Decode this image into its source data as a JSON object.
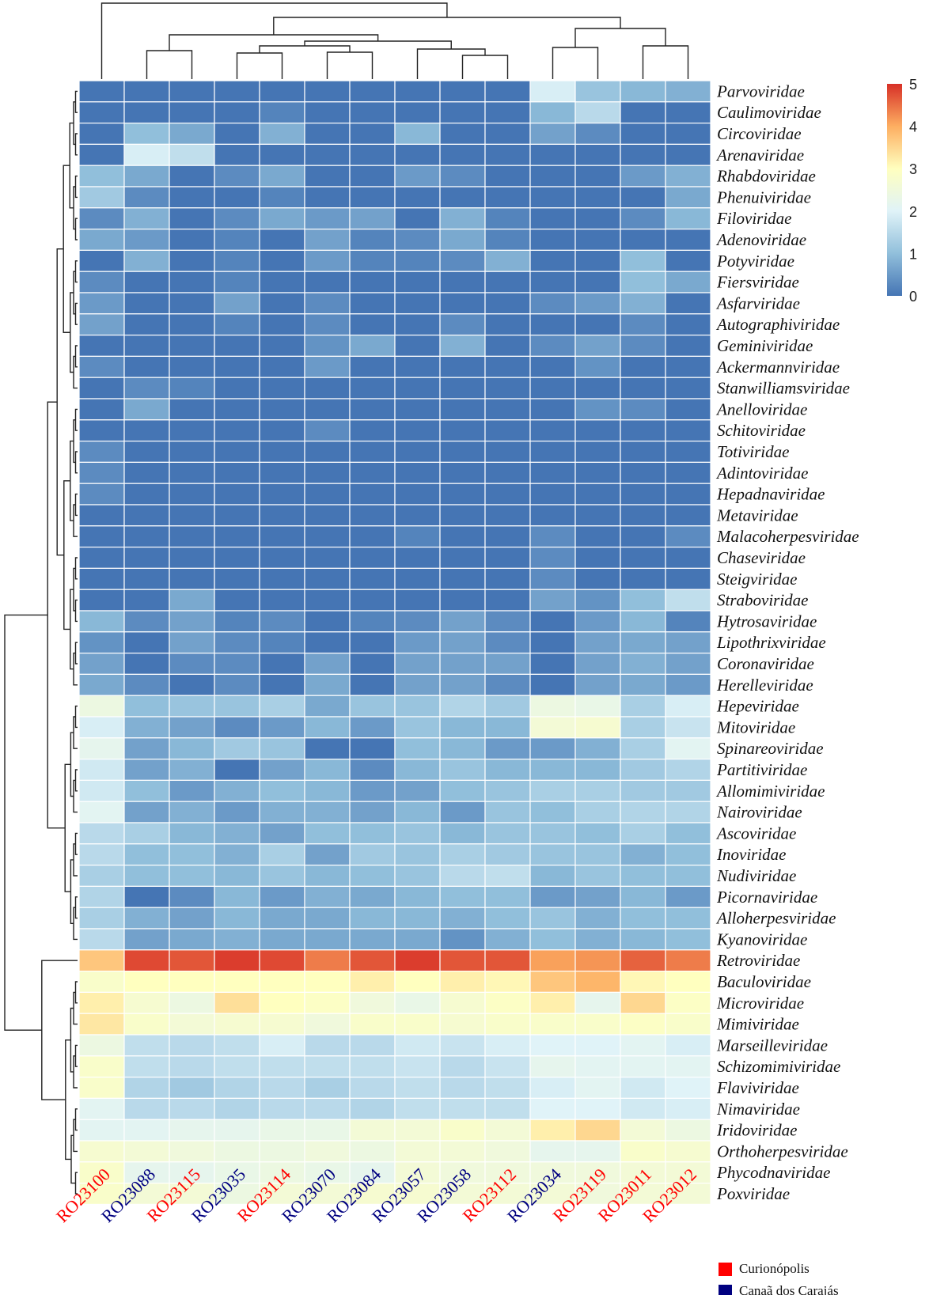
{
  "chart_data": {
    "type": "heatmap",
    "title": "",
    "xlabel": "",
    "ylabel": "",
    "color_scale": {
      "min": 0,
      "max": 5,
      "ticks": [
        "0",
        "1",
        "2",
        "3",
        "4",
        "5"
      ],
      "colors": [
        "#4575b4",
        "#91bfdb",
        "#e0f3f8",
        "#ffffbf",
        "#fdae61",
        "#d73027"
      ]
    },
    "columns": [
      {
        "label": "RO23100",
        "group": "Curionópolis"
      },
      {
        "label": "RO23088",
        "group": "Canaã dos Carajás"
      },
      {
        "label": "RO23115",
        "group": "Curionópolis"
      },
      {
        "label": "RO23035",
        "group": "Canaã dos Carajás"
      },
      {
        "label": "RO23114",
        "group": "Curionópolis"
      },
      {
        "label": "RO23070",
        "group": "Canaã dos Carajás"
      },
      {
        "label": "RO23084",
        "group": "Canaã dos Carajás"
      },
      {
        "label": "RO23057",
        "group": "Canaã dos Carajás"
      },
      {
        "label": "RO23058",
        "group": "Canaã dos Carajás"
      },
      {
        "label": "RO23112",
        "group": "Curionópolis"
      },
      {
        "label": "RO23034",
        "group": "Canaã dos Carajás"
      },
      {
        "label": "RO23119",
        "group": "Curionópolis"
      },
      {
        "label": "RO23011",
        "group": "Curionópolis"
      },
      {
        "label": "RO23012",
        "group": "Curionópolis"
      }
    ],
    "rows": [
      "Parvoviridae",
      "Caulimoviridae",
      "Circoviridae",
      "Arenaviridae",
      "Rhabdoviridae",
      "Phenuiviridae",
      "Filoviridae",
      "Adenoviridae",
      "Potyviridae",
      "Fiersviridae",
      "Asfarviridae",
      "Autographiviridae",
      "Geminiviridae",
      "Ackermannviridae",
      "Stanwilliamsviridae",
      "Anelloviridae",
      "Schitoviridae",
      "Totiviridae",
      "Adintoviridae",
      "Hepadnaviridae",
      "Metaviridae",
      "Malacoherpesviridae",
      "Chaseviridae",
      "Steigviridae",
      "Straboviridae",
      "Hytrosaviridae",
      "Lipothrixviridae",
      "Coronaviridae",
      "Herelleviridae",
      "Hepeviridae",
      "Mitoviridae",
      "Spinareoviridae",
      "Partitiviridae",
      "Allomimiviridae",
      "Nairoviridae",
      "Ascoviridae",
      "Inoviridae",
      "Nudiviridae",
      "Picornaviridae",
      "Alloherpesviridae",
      "Kyanoviridae",
      "Retroviridae",
      "Baculoviridae",
      "Microviridae",
      "Mimiviridae",
      "Marseilleviridae",
      "Schizomimiviridae",
      "Flaviviridae",
      "Nimaviridae",
      "Iridoviridae",
      "Orthoherpesviridae",
      "Phycodnaviridae",
      "Poxviridae"
    ],
    "values": [
      [
        0.0,
        0.0,
        0.0,
        0.0,
        0.0,
        0.0,
        0.0,
        0.0,
        0.0,
        0.0,
        1.9,
        1.1,
        0.9,
        0.8
      ],
      [
        0.0,
        0.0,
        0.0,
        0.0,
        0.2,
        0.0,
        0.0,
        0.0,
        0.0,
        0.0,
        0.9,
        1.5,
        0.0,
        0.0
      ],
      [
        0.0,
        1.0,
        0.7,
        0.0,
        0.8,
        0.0,
        0.0,
        0.9,
        0.0,
        0.0,
        0.6,
        0.3,
        0.0,
        0.0
      ],
      [
        0.0,
        1.9,
        1.6,
        0.0,
        0.0,
        0.0,
        0.0,
        0.0,
        0.0,
        0.0,
        0.0,
        0.0,
        0.0,
        0.0
      ],
      [
        1.0,
        0.7,
        0.0,
        0.3,
        0.7,
        0.0,
        0.0,
        0.5,
        0.3,
        0.0,
        0.0,
        0.0,
        0.5,
        0.8
      ],
      [
        1.2,
        0.3,
        0.0,
        0.0,
        0.2,
        0.0,
        0.0,
        0.0,
        0.0,
        0.0,
        0.0,
        0.0,
        0.0,
        0.7
      ],
      [
        0.3,
        0.8,
        0.0,
        0.3,
        0.7,
        0.5,
        0.6,
        0.0,
        0.8,
        0.2,
        0.0,
        0.0,
        0.3,
        0.9
      ],
      [
        0.7,
        0.5,
        0.0,
        0.2,
        0.0,
        0.6,
        0.2,
        0.3,
        0.7,
        0.2,
        0.0,
        0.0,
        0.0,
        0.0
      ],
      [
        0.0,
        0.8,
        0.0,
        0.2,
        0.0,
        0.5,
        0.2,
        0.2,
        0.3,
        0.8,
        0.0,
        0.0,
        1.0,
        0.0
      ],
      [
        0.3,
        0.0,
        0.0,
        0.2,
        0.0,
        0.0,
        0.0,
        0.0,
        0.0,
        0.0,
        0.0,
        0.0,
        1.0,
        0.7
      ],
      [
        0.5,
        0.0,
        0.0,
        0.6,
        0.0,
        0.3,
        0.0,
        0.0,
        0.0,
        0.0,
        0.3,
        0.5,
        0.8,
        0.0
      ],
      [
        0.6,
        0.0,
        0.0,
        0.2,
        0.0,
        0.3,
        0.0,
        0.0,
        0.3,
        0.0,
        0.0,
        0.0,
        0.3,
        0.0
      ],
      [
        0.0,
        0.0,
        0.0,
        0.0,
        0.0,
        0.4,
        0.7,
        0.0,
        0.8,
        0.0,
        0.3,
        0.6,
        0.3,
        0.0
      ],
      [
        0.3,
        0.0,
        0.0,
        0.0,
        0.0,
        0.5,
        0.0,
        0.0,
        0.0,
        0.0,
        0.0,
        0.4,
        0.0,
        0.0
      ],
      [
        0.0,
        0.3,
        0.2,
        0.0,
        0.0,
        0.0,
        0.0,
        0.0,
        0.0,
        0.0,
        0.0,
        0.0,
        0.0,
        0.0
      ],
      [
        0.0,
        0.7,
        0.0,
        0.0,
        0.0,
        0.0,
        0.0,
        0.0,
        0.0,
        0.0,
        0.0,
        0.4,
        0.3,
        0.0
      ],
      [
        0.0,
        0.0,
        0.0,
        0.0,
        0.0,
        0.3,
        0.0,
        0.0,
        0.0,
        0.0,
        0.0,
        0.0,
        0.0,
        0.0
      ],
      [
        0.3,
        0.0,
        0.0,
        0.0,
        0.0,
        0.0,
        0.0,
        0.0,
        0.0,
        0.0,
        0.0,
        0.0,
        0.0,
        0.0
      ],
      [
        0.3,
        0.0,
        0.0,
        0.0,
        0.0,
        0.0,
        0.0,
        0.0,
        0.0,
        0.0,
        0.0,
        0.0,
        0.0,
        0.0
      ],
      [
        0.3,
        0.0,
        0.0,
        0.0,
        0.0,
        0.0,
        0.0,
        0.0,
        0.0,
        0.0,
        0.0,
        0.0,
        0.0,
        0.0
      ],
      [
        0.0,
        0.0,
        0.0,
        0.0,
        0.0,
        0.0,
        0.0,
        0.0,
        0.0,
        0.0,
        0.0,
        0.0,
        0.0,
        0.0
      ],
      [
        0.0,
        0.0,
        0.0,
        0.0,
        0.0,
        0.0,
        0.0,
        0.2,
        0.0,
        0.0,
        0.3,
        0.0,
        0.0,
        0.3
      ],
      [
        0.0,
        0.0,
        0.0,
        0.0,
        0.0,
        0.0,
        0.0,
        0.0,
        0.0,
        0.0,
        0.3,
        0.0,
        0.0,
        0.0
      ],
      [
        0.0,
        0.0,
        0.0,
        0.0,
        0.0,
        0.0,
        0.0,
        0.0,
        0.0,
        0.0,
        0.3,
        0.0,
        0.0,
        0.0
      ],
      [
        0.0,
        0.0,
        0.7,
        0.0,
        0.0,
        0.0,
        0.0,
        0.0,
        0.0,
        0.0,
        0.6,
        0.4,
        1.0,
        1.6
      ],
      [
        0.9,
        0.3,
        0.6,
        0.2,
        0.3,
        0.0,
        0.2,
        0.3,
        0.6,
        0.3,
        0.0,
        0.5,
        0.9,
        0.2
      ],
      [
        0.4,
        0.0,
        0.6,
        0.3,
        0.2,
        0.0,
        0.0,
        0.5,
        0.6,
        0.3,
        0.0,
        0.6,
        0.7,
        0.6
      ],
      [
        0.6,
        0.0,
        0.3,
        0.3,
        0.0,
        0.6,
        0.0,
        0.6,
        0.6,
        0.6,
        0.0,
        0.6,
        0.8,
        0.6
      ],
      [
        0.7,
        0.3,
        0.0,
        0.3,
        0.0,
        0.7,
        0.0,
        0.6,
        0.6,
        0.3,
        0.0,
        0.6,
        0.7,
        0.5
      ],
      [
        2.4,
        1.0,
        1.1,
        1.1,
        1.3,
        0.7,
        1.1,
        1.1,
        1.4,
        1.2,
        2.4,
        2.3,
        1.3,
        1.9
      ],
      [
        1.9,
        0.8,
        0.6,
        0.3,
        0.5,
        0.9,
        0.5,
        1.1,
        0.9,
        0.9,
        2.6,
        2.7,
        1.3,
        1.7
      ],
      [
        2.2,
        0.6,
        0.9,
        1.2,
        1.1,
        0.0,
        0.0,
        1.0,
        0.9,
        0.5,
        0.5,
        0.8,
        1.3,
        2.1
      ],
      [
        1.8,
        0.6,
        0.8,
        0.0,
        0.6,
        0.9,
        0.3,
        0.9,
        1.1,
        0.9,
        0.9,
        0.9,
        1.2,
        1.4
      ],
      [
        1.8,
        1.0,
        0.5,
        0.8,
        1.0,
        0.9,
        0.5,
        0.6,
        1.0,
        1.1,
        1.3,
        1.3,
        1.2,
        1.2
      ],
      [
        2.1,
        0.6,
        0.8,
        0.5,
        0.8,
        0.8,
        0.6,
        0.9,
        0.5,
        1.1,
        1.0,
        1.3,
        1.4,
        1.4
      ],
      [
        1.5,
        1.3,
        0.9,
        0.8,
        0.6,
        1.0,
        1.0,
        1.1,
        0.9,
        1.1,
        1.1,
        1.0,
        1.3,
        1.0
      ],
      [
        1.5,
        1.0,
        1.0,
        0.8,
        1.3,
        0.6,
        1.2,
        1.1,
        1.3,
        1.2,
        1.1,
        1.1,
        0.8,
        1.0
      ],
      [
        1.3,
        1.0,
        1.0,
        0.9,
        1.1,
        0.9,
        1.0,
        1.1,
        1.5,
        1.6,
        0.9,
        1.1,
        1.0,
        1.0
      ],
      [
        1.4,
        0.0,
        0.3,
        0.9,
        0.5,
        0.8,
        0.7,
        0.9,
        1.0,
        1.0,
        0.5,
        0.6,
        0.9,
        0.5
      ],
      [
        1.3,
        0.8,
        0.6,
        0.9,
        0.7,
        0.7,
        0.9,
        0.9,
        0.8,
        1.0,
        1.1,
        0.8,
        1.0,
        1.0
      ],
      [
        1.5,
        0.6,
        0.7,
        0.8,
        0.7,
        0.7,
        0.7,
        0.7,
        0.4,
        0.8,
        1.0,
        0.8,
        0.9,
        1.0
      ],
      [
        3.7,
        4.8,
        4.7,
        4.9,
        4.8,
        4.4,
        4.7,
        4.9,
        4.7,
        4.7,
        4.1,
        4.2,
        4.6,
        4.4
      ],
      [
        2.8,
        3.0,
        3.0,
        3.0,
        3.0,
        3.0,
        3.2,
        3.0,
        3.2,
        3.1,
        3.7,
        3.9,
        3.1,
        3.0
      ],
      [
        3.2,
        2.7,
        2.4,
        3.4,
        3.0,
        2.9,
        2.5,
        2.3,
        2.7,
        2.9,
        3.2,
        2.2,
        3.5,
        2.9
      ],
      [
        3.3,
        2.8,
        2.6,
        2.7,
        2.7,
        2.5,
        2.8,
        2.8,
        2.7,
        2.8,
        2.8,
        2.8,
        2.9,
        2.8
      ],
      [
        2.4,
        1.6,
        1.5,
        1.6,
        1.9,
        1.5,
        1.5,
        1.8,
        1.7,
        1.9,
        2.0,
        2.0,
        2.1,
        1.9
      ],
      [
        2.8,
        1.6,
        1.5,
        1.6,
        1.6,
        1.6,
        1.6,
        1.7,
        1.5,
        1.7,
        2.2,
        2.1,
        2.1,
        2.1
      ],
      [
        2.8,
        1.4,
        1.2,
        1.4,
        1.5,
        1.3,
        1.5,
        1.6,
        1.5,
        1.6,
        1.9,
        2.1,
        1.8,
        2.0
      ],
      [
        2.1,
        1.5,
        1.5,
        1.4,
        1.5,
        1.5,
        1.4,
        1.6,
        1.6,
        1.6,
        2.0,
        2.0,
        1.8,
        1.9
      ],
      [
        2.1,
        2.1,
        2.2,
        2.2,
        2.3,
        2.3,
        2.6,
        2.6,
        2.8,
        2.6,
        3.2,
        3.5,
        2.6,
        2.4
      ],
      [
        2.7,
        2.6,
        2.5,
        2.4,
        2.4,
        2.5,
        2.4,
        2.6,
        2.6,
        2.5,
        2.2,
        2.2,
        2.8,
        2.7
      ],
      [
        2.8,
        2.2,
        2.2,
        2.3,
        2.4,
        2.3,
        2.2,
        2.6,
        2.5,
        2.5,
        2.5,
        2.5,
        2.6,
        2.6
      ],
      [
        2.8,
        2.6,
        2.6,
        2.4,
        2.6,
        2.6,
        2.7,
        2.7,
        2.6,
        2.6,
        2.6,
        2.5,
        2.6,
        2.6
      ]
    ],
    "legend": {
      "placement": "bottom-right",
      "items": [
        {
          "label": "Curionópolis",
          "color": "#ff0000"
        },
        {
          "label": "Canaã dos Carajás",
          "color": "#000080"
        }
      ]
    },
    "colorbar_placement": "top-right",
    "dendrograms": {
      "rows": true,
      "columns": true
    }
  }
}
